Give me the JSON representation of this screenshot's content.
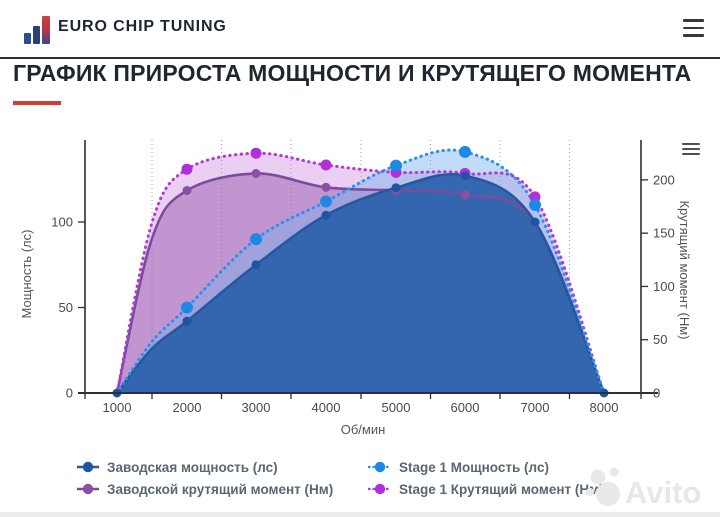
{
  "header": {
    "brand": "EURO CHIP TUNING"
  },
  "title": "ГРАФИК ПРИРОСТА МОЩНОСТИ И КРУТЯЩЕГО МОМЕНТА",
  "accent_color": "#d93a32",
  "watermark": {
    "text": "Avito"
  },
  "chart_data": {
    "type": "line",
    "x_categories": [
      "1000",
      "2000",
      "3000",
      "4000",
      "5000",
      "6000",
      "7000",
      "8000"
    ],
    "xlabel": "Об/мин",
    "ylabel_left": "Мощность (лс)",
    "ylabel_right": "Крутящий момент (Нм)",
    "yleft_ticks": [
      0,
      50,
      100
    ],
    "yleft_range": [
      0,
      148
    ],
    "yright_ticks": [
      0,
      50,
      100,
      150,
      200
    ],
    "yright_range": [
      0,
      237
    ],
    "grid": "vertical-dotted-between-categories",
    "legend_position": "bottom-two-columns",
    "series": [
      {
        "name": "Заводская мощность (лс)",
        "axis": "power",
        "style": "solid",
        "color": "#27589f",
        "marker_color": "#1d55a3",
        "fill": "rgba(45,99,172,0.95)",
        "marker_r": 4.5,
        "endpoint_markers": true,
        "values": [
          0,
          42,
          75,
          104,
          120,
          127,
          100,
          0
        ],
        "v1500": 26
      },
      {
        "name": "Stage 1 Мощность (лс)",
        "axis": "power",
        "style": "dotted",
        "color": "#2b8ff0",
        "marker_color": "#1e88e5",
        "fill": "rgba(120,175,235,0.45)",
        "marker_r": 6,
        "endpoint_markers": false,
        "values": [
          0,
          50,
          90,
          112,
          133,
          141,
          110,
          0
        ],
        "v1500": 30
      },
      {
        "name": "Заводской крутящий момент (Нм)",
        "axis": "torque",
        "style": "solid",
        "color": "#7c4c9c",
        "marker_color": "#8a50a5",
        "fill": "rgba(154,92,176,0.50)",
        "marker_r": 4.5,
        "endpoint_markers": false,
        "values": [
          0,
          190,
          206,
          193,
          190,
          186,
          160,
          0
        ],
        "v1500": 145
      },
      {
        "name": "Stage 1 Крутящий момент (Нм)",
        "axis": "torque",
        "style": "dotted",
        "color": "#b03bd4",
        "marker_color": "#b02fd8",
        "fill": "rgba(200,130,220,0.38)",
        "marker_r": 5.5,
        "endpoint_markers": false,
        "values": [
          0,
          210,
          225,
          214,
          207,
          206,
          184,
          0
        ],
        "v1500": 160
      }
    ],
    "legend_columns": [
      [
        0,
        2
      ],
      [
        1,
        3
      ]
    ]
  }
}
